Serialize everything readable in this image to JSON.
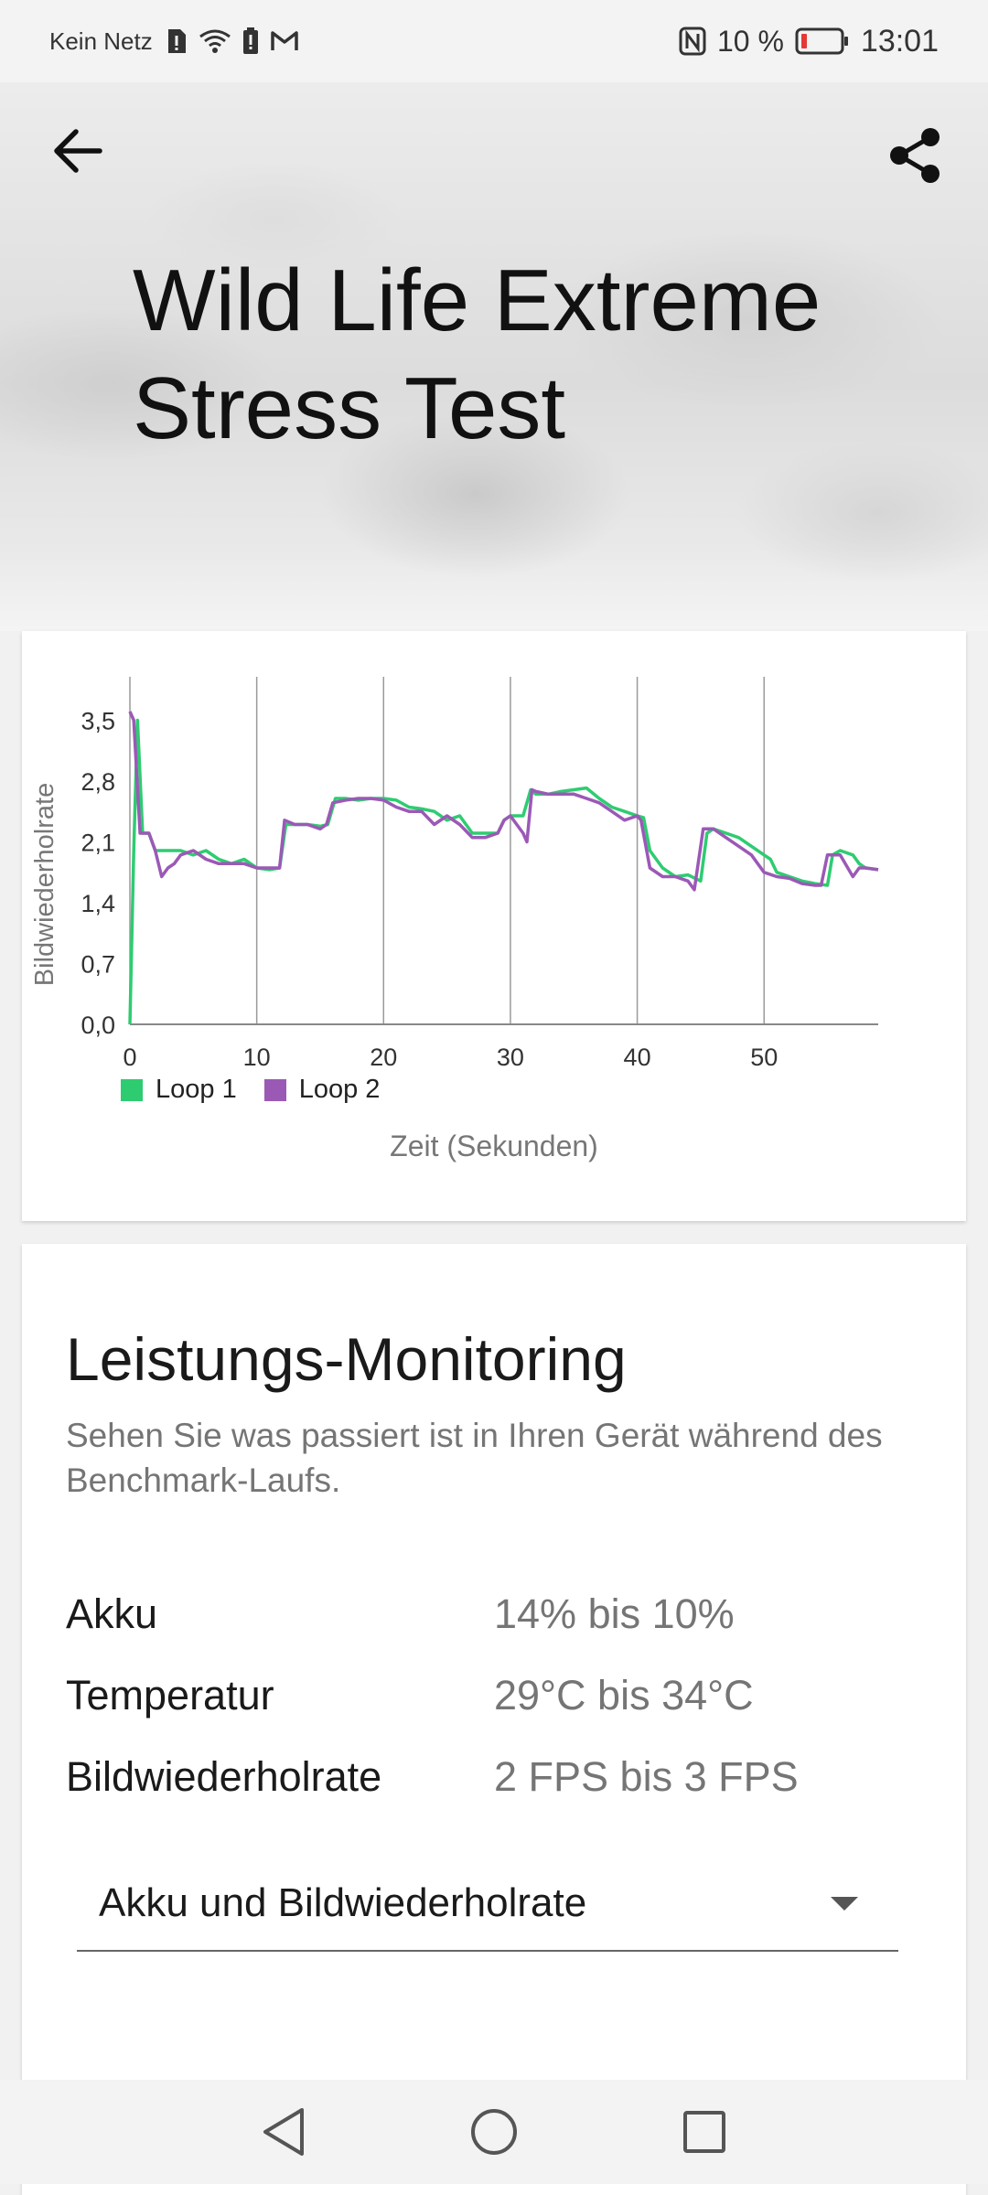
{
  "status_bar": {
    "carrier": "Kein Netz",
    "battery_percent": "10 %",
    "time": "13:01"
  },
  "header": {
    "title": "Wild Life Extreme Stress Test"
  },
  "chart_data": {
    "type": "line",
    "xlabel": "Zeit (Sekunden)",
    "ylabel": "Bildwiederholrate",
    "x_ticks": [
      "0",
      "10",
      "20",
      "30",
      "40",
      "50"
    ],
    "y_ticks": [
      "0,0",
      "0,7",
      "1,4",
      "2,1",
      "2,8",
      "3,5"
    ],
    "xlim": [
      0,
      59
    ],
    "ylim": [
      0,
      4.0
    ],
    "grid": "vertical",
    "legend_position": "bottom-left",
    "series": [
      {
        "name": "Loop 1",
        "color": "#2ecc71",
        "points": [
          [
            0,
            0
          ],
          [
            0.3,
            2.0
          ],
          [
            0.6,
            3.5
          ],
          [
            1,
            2.2
          ],
          [
            1.5,
            2.2
          ],
          [
            2,
            2.0
          ],
          [
            3,
            2.0
          ],
          [
            4,
            2.0
          ],
          [
            5,
            1.95
          ],
          [
            6,
            2.0
          ],
          [
            7,
            1.9
          ],
          [
            8,
            1.85
          ],
          [
            9,
            1.9
          ],
          [
            10,
            1.8
          ],
          [
            11,
            1.78
          ],
          [
            11.8,
            1.8
          ],
          [
            12.3,
            2.3
          ],
          [
            13,
            2.3
          ],
          [
            14,
            2.3
          ],
          [
            15,
            2.28
          ],
          [
            15.6,
            2.3
          ],
          [
            16.2,
            2.6
          ],
          [
            17,
            2.6
          ],
          [
            18,
            2.58
          ],
          [
            19,
            2.6
          ],
          [
            20,
            2.6
          ],
          [
            21,
            2.58
          ],
          [
            22,
            2.5
          ],
          [
            23,
            2.48
          ],
          [
            24,
            2.45
          ],
          [
            25,
            2.35
          ],
          [
            26,
            2.4
          ],
          [
            26.5,
            2.3
          ],
          [
            27,
            2.2
          ],
          [
            28,
            2.2
          ],
          [
            29,
            2.2
          ],
          [
            29.5,
            2.35
          ],
          [
            30,
            2.4
          ],
          [
            31,
            2.4
          ],
          [
            31.6,
            2.7
          ],
          [
            32,
            2.65
          ],
          [
            33,
            2.65
          ],
          [
            34,
            2.68
          ],
          [
            35,
            2.7
          ],
          [
            36,
            2.72
          ],
          [
            37,
            2.6
          ],
          [
            38,
            2.5
          ],
          [
            39,
            2.45
          ],
          [
            40,
            2.4
          ],
          [
            40.5,
            2.38
          ],
          [
            41,
            2.0
          ],
          [
            42,
            1.8
          ],
          [
            43,
            1.7
          ],
          [
            44,
            1.72
          ],
          [
            45,
            1.65
          ],
          [
            45.5,
            2.2
          ],
          [
            46,
            2.25
          ],
          [
            47,
            2.2
          ],
          [
            48,
            2.15
          ],
          [
            49,
            2.05
          ],
          [
            50,
            1.95
          ],
          [
            50.5,
            1.9
          ],
          [
            51,
            1.75
          ],
          [
            52,
            1.7
          ],
          [
            53,
            1.65
          ],
          [
            54,
            1.62
          ],
          [
            55,
            1.6
          ],
          [
            55.4,
            1.95
          ],
          [
            56,
            2.0
          ],
          [
            57,
            1.95
          ],
          [
            57.5,
            1.85
          ],
          [
            58,
            1.8
          ],
          [
            59,
            1.78
          ]
        ]
      },
      {
        "name": "Loop 2",
        "color": "#9b59b6",
        "points": [
          [
            0,
            3.6
          ],
          [
            0.3,
            3.5
          ],
          [
            0.8,
            2.2
          ],
          [
            1.5,
            2.2
          ],
          [
            2,
            2.0
          ],
          [
            2.5,
            1.7
          ],
          [
            3,
            1.8
          ],
          [
            3.5,
            1.85
          ],
          [
            4,
            1.95
          ],
          [
            5,
            2.0
          ],
          [
            6,
            1.9
          ],
          [
            7,
            1.85
          ],
          [
            8,
            1.85
          ],
          [
            9,
            1.85
          ],
          [
            10,
            1.8
          ],
          [
            11,
            1.8
          ],
          [
            11.8,
            1.8
          ],
          [
            12.2,
            2.35
          ],
          [
            13,
            2.3
          ],
          [
            14,
            2.3
          ],
          [
            15,
            2.25
          ],
          [
            15.5,
            2.3
          ],
          [
            16,
            2.55
          ],
          [
            17,
            2.58
          ],
          [
            18,
            2.6
          ],
          [
            19,
            2.6
          ],
          [
            20,
            2.58
          ],
          [
            21,
            2.5
          ],
          [
            22,
            2.45
          ],
          [
            23,
            2.45
          ],
          [
            24,
            2.3
          ],
          [
            25,
            2.4
          ],
          [
            26,
            2.3
          ],
          [
            27,
            2.15
          ],
          [
            28,
            2.15
          ],
          [
            29,
            2.2
          ],
          [
            29.5,
            2.35
          ],
          [
            30,
            2.4
          ],
          [
            31,
            2.2
          ],
          [
            31.3,
            2.1
          ],
          [
            31.7,
            2.7
          ],
          [
            32,
            2.68
          ],
          [
            33,
            2.65
          ],
          [
            34,
            2.65
          ],
          [
            35,
            2.65
          ],
          [
            36,
            2.6
          ],
          [
            37,
            2.55
          ],
          [
            38,
            2.45
          ],
          [
            39,
            2.35
          ],
          [
            40,
            2.4
          ],
          [
            40.3,
            2.35
          ],
          [
            41,
            1.8
          ],
          [
            42,
            1.7
          ],
          [
            43,
            1.7
          ],
          [
            44,
            1.65
          ],
          [
            44.5,
            1.55
          ],
          [
            45.2,
            2.25
          ],
          [
            46,
            2.25
          ],
          [
            47,
            2.15
          ],
          [
            48,
            2.05
          ],
          [
            49,
            1.95
          ],
          [
            50,
            1.75
          ],
          [
            51,
            1.7
          ],
          [
            52,
            1.68
          ],
          [
            53,
            1.62
          ],
          [
            54,
            1.6
          ],
          [
            54.5,
            1.6
          ],
          [
            55,
            1.95
          ],
          [
            56,
            1.95
          ],
          [
            57,
            1.7
          ],
          [
            57.5,
            1.8
          ],
          [
            58,
            1.8
          ],
          [
            59,
            1.78
          ]
        ]
      }
    ]
  },
  "monitoring": {
    "title": "Leistungs-Monitoring",
    "subtitle": "Sehen Sie was passiert ist in Ihren Gerät während des Benchmark-Laufs.",
    "rows": [
      {
        "label": "Akku",
        "value": "14% bis 10%"
      },
      {
        "label": "Temperatur",
        "value": "29°C bis 34°C"
      },
      {
        "label": "Bildwiederholrate",
        "value": "2 FPS bis 3 FPS"
      }
    ],
    "dropdown": {
      "selected": "Akku und Bildwiederholrate"
    }
  }
}
